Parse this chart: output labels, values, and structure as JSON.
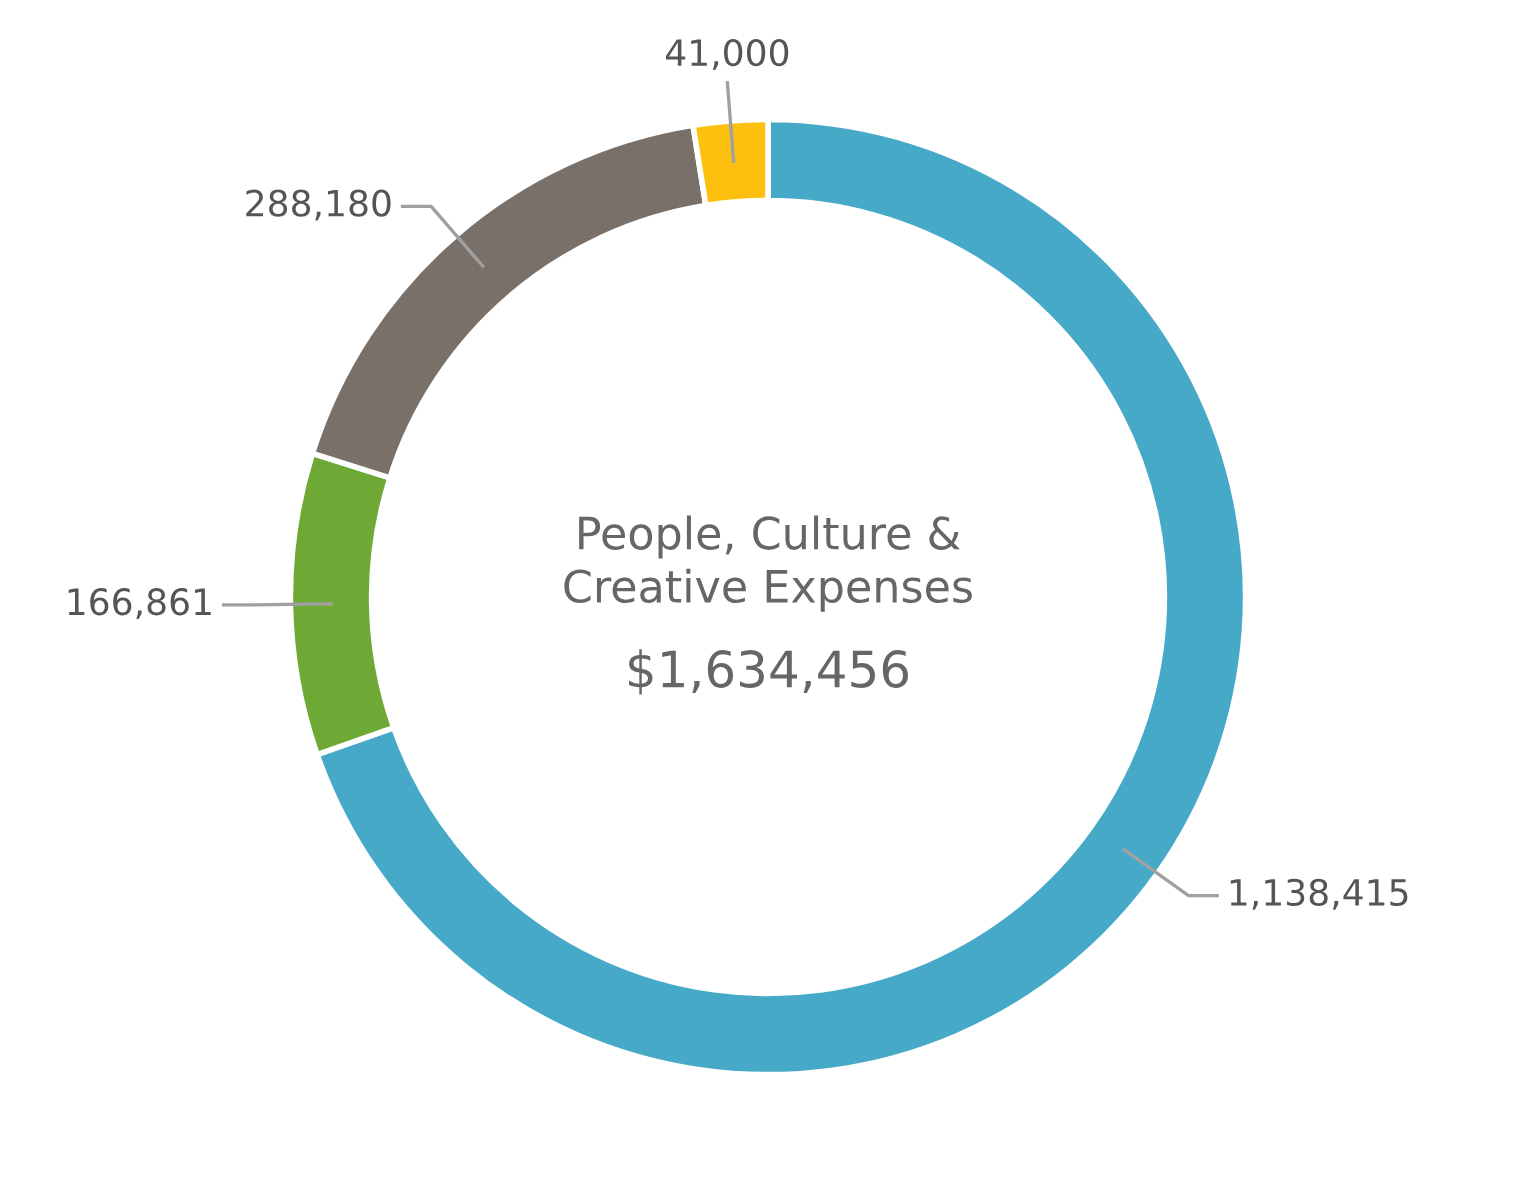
{
  "chart_data": {
    "type": "donut",
    "categories": [
      null,
      null,
      null,
      null
    ],
    "values": [
      1138415,
      166861,
      288180,
      41000
    ],
    "colors": [
      "#46a9c8",
      "#6ea935",
      "#787069",
      "#fdc00f"
    ],
    "value_labels": [
      "1,138,415",
      "166,861",
      "288,180",
      "41,000"
    ],
    "annotations": [
      "People, Culture &\nCreative Expenses",
      "$1,634,456"
    ]
  }
}
